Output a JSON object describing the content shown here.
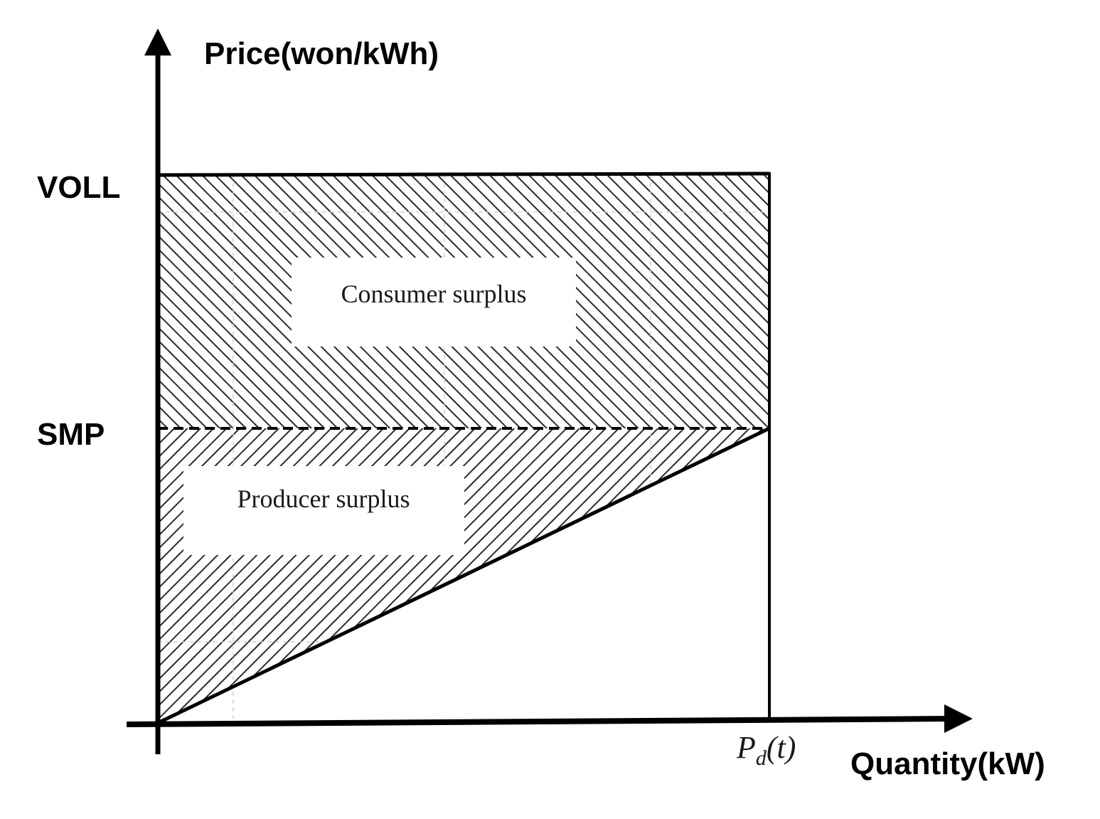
{
  "axes": {
    "y_title": "Price(won/kWh)",
    "x_title": "Quantity(kW)"
  },
  "levels": {
    "voll": "VOLL",
    "smp": "SMP"
  },
  "regions": {
    "consumer": "Consumer surplus",
    "producer": "Producer surplus"
  },
  "demand_marker": {
    "main": "P",
    "subscript": "d",
    "arg": "(t)"
  }
}
